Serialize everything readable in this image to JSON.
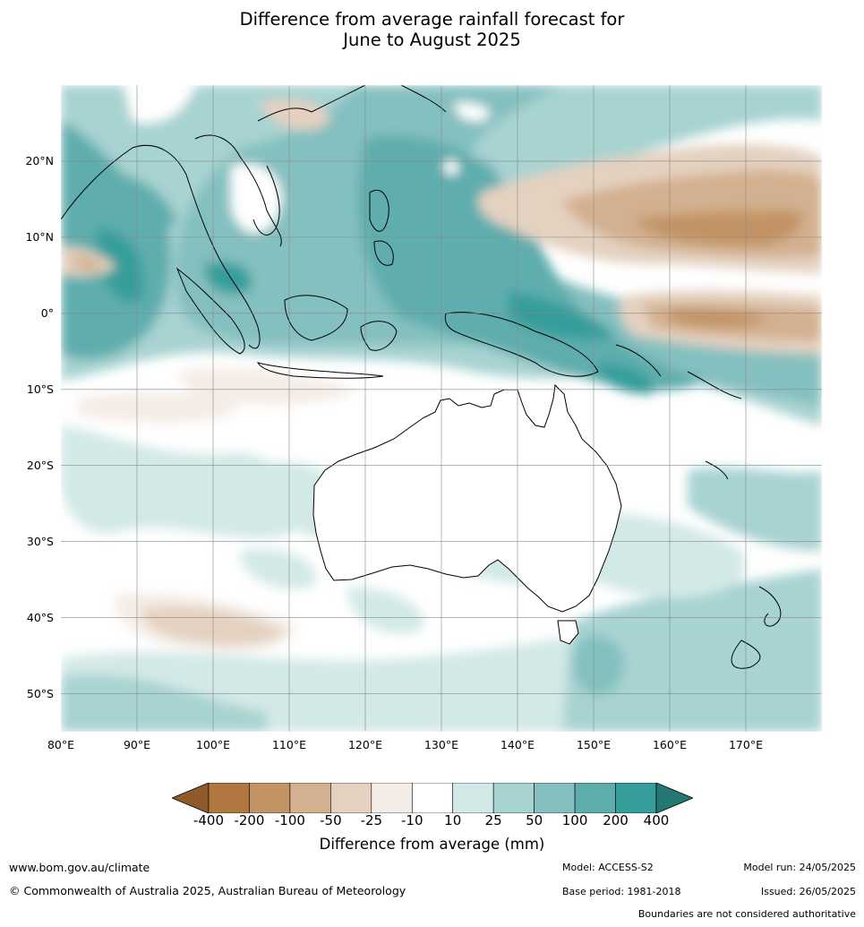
{
  "title_line1": "Difference from average rainfall forecast for",
  "title_line2": "June to August 2025",
  "map": {
    "extent": {
      "lon_min": 80,
      "lon_max": 180,
      "lat_min": -55,
      "lat_max": 30
    },
    "lat_labels": [
      {
        "lat": 20,
        "text": "20°N"
      },
      {
        "lat": 10,
        "text": "10°N"
      },
      {
        "lat": 0,
        "text": "0°"
      },
      {
        "lat": -10,
        "text": "10°S"
      },
      {
        "lat": -20,
        "text": "20°S"
      },
      {
        "lat": -30,
        "text": "30°S"
      },
      {
        "lat": -40,
        "text": "40°S"
      },
      {
        "lat": -50,
        "text": "50°S"
      }
    ],
    "lon_labels": [
      {
        "lon": 80,
        "text": "80°E"
      },
      {
        "lon": 90,
        "text": "90°E"
      },
      {
        "lon": 100,
        "text": "100°E"
      },
      {
        "lon": 110,
        "text": "110°E"
      },
      {
        "lon": 120,
        "text": "120°E"
      },
      {
        "lon": 130,
        "text": "130°E"
      },
      {
        "lon": 140,
        "text": "140°E"
      },
      {
        "lon": 150,
        "text": "150°E"
      },
      {
        "lon": 160,
        "text": "160°E"
      },
      {
        "lon": 170,
        "text": "170°E"
      }
    ]
  },
  "legend": {
    "ticks": [
      "-400",
      "-200",
      "-100",
      "-50",
      "-25",
      "-10",
      "10",
      "25",
      "50",
      "100",
      "200",
      "400"
    ],
    "colors": [
      "#8f5a2a",
      "#b07840",
      "#c29465",
      "#d3b08f",
      "#e4d1c0",
      "#f4ece6",
      "#ffffff",
      "#d3e9e7",
      "#a7d3d1",
      "#84c0bf",
      "#5eadad",
      "#359e9b",
      "#237874"
    ],
    "label": "Difference from average (mm)"
  },
  "footer": {
    "website": "www.bom.gov.au/climate",
    "copyright": "© Commonwealth of Australia 2025, Australian Bureau of Meteorology",
    "model": "Model: ACCESS-S2",
    "base_period": "Base period: 1981-2018",
    "model_run": "Model run: 24/05/2025",
    "issued": "Issued: 26/05/2025",
    "disclaimer": "Boundaries are not considered authoritative"
  }
}
